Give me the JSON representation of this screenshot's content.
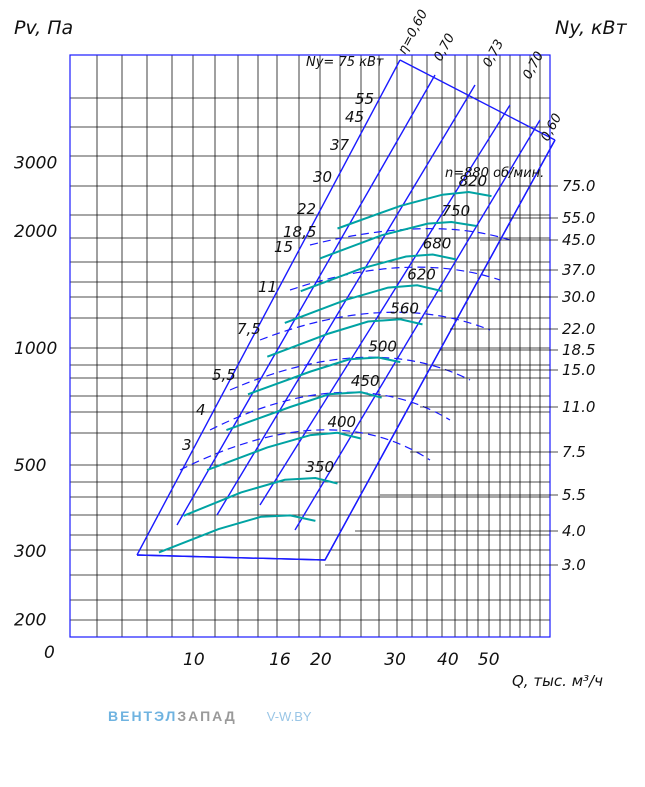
{
  "chart_data": {
    "type": "line",
    "title": "",
    "left_axis_label": "Pv, Па",
    "right_axis_label": "Ny, кВт",
    "x_axis_label": "Q, тыс. м³/ч",
    "x_scale": "log",
    "y_scale": "log",
    "x_ticks": [
      {
        "value": 10,
        "label": "10"
      },
      {
        "value": 16,
        "label": "16"
      },
      {
        "value": 20,
        "label": "20"
      },
      {
        "value": 30,
        "label": "30"
      },
      {
        "value": 40,
        "label": "40"
      },
      {
        "value": 50,
        "label": "50"
      }
    ],
    "x_zero_label": "0",
    "y_ticks": [
      {
        "value": 200,
        "label": "200"
      },
      {
        "value": 300,
        "label": "300"
      },
      {
        "value": 500,
        "label": "500"
      },
      {
        "value": 1000,
        "label": "1000"
      },
      {
        "value": 2000,
        "label": "2000"
      },
      {
        "value": 3000,
        "label": "3000"
      }
    ],
    "power_scale_right": [
      "75.0",
      "55.0",
      "45.0",
      "37.0",
      "30.0",
      "22.0",
      "18.5",
      "15.0",
      "11.0",
      "7.5",
      "5.5",
      "4.0",
      "3.0"
    ],
    "power_labels_on_chart": [
      "Ny= 75 кВт",
      "55",
      "45",
      "37",
      "30",
      "22",
      "18,5",
      "15",
      "11",
      "7,5",
      "5,5",
      "4",
      "3"
    ],
    "efficiency_labels": [
      "η=0,60",
      "0,70",
      "0,73",
      "0,70",
      "0,60"
    ],
    "speed_unit_label": "n=880 об/мин.",
    "series": [
      {
        "name": "820",
        "x": [
          22,
          31,
          39,
          45,
          51
        ],
        "y": [
          2030,
          2320,
          2480,
          2520,
          2460
        ]
      },
      {
        "name": "750",
        "x": [
          20,
          28,
          36,
          41,
          47
        ],
        "y": [
          1700,
          1950,
          2090,
          2110,
          2060
        ]
      },
      {
        "name": "680",
        "x": [
          18,
          25,
          32,
          37,
          42
        ],
        "y": [
          1400,
          1600,
          1720,
          1740,
          1690
        ]
      },
      {
        "name": "620",
        "x": [
          16.5,
          23,
          29,
          34,
          39
        ],
        "y": [
          1160,
          1330,
          1430,
          1450,
          1400
        ]
      },
      {
        "name": "560",
        "x": [
          15,
          21,
          26,
          31,
          35
        ],
        "y": [
          950,
          1090,
          1170,
          1185,
          1150
        ]
      },
      {
        "name": "500",
        "x": [
          13.5,
          19,
          23.5,
          27.5,
          31
        ],
        "y": [
          760,
          870,
          935,
          945,
          920
        ]
      },
      {
        "name": "450",
        "x": [
          12,
          17,
          21,
          25,
          28
        ],
        "y": [
          615,
          705,
          760,
          770,
          745
        ]
      },
      {
        "name": "400",
        "x": [
          10.8,
          15,
          19,
          22,
          25
        ],
        "y": [
          485,
          555,
          597,
          605,
          585
        ]
      },
      {
        "name": "350",
        "x": [
          9.5,
          13,
          16.5,
          19.5,
          22
        ],
        "y": [
          370,
          425,
          458,
          463,
          448
        ]
      },
      {
        "name": "",
        "x": [
          8.3,
          11.5,
          14.5,
          17,
          19.5
        ],
        "y": [
          298,
          342,
          368,
          371,
          359
        ]
      }
    ],
    "grid": true,
    "legend": "none"
  },
  "watermark": {
    "part1": "ВЕНТЭЛ",
    "part2": "ЗАПАД",
    "site": "V-W.BY"
  }
}
